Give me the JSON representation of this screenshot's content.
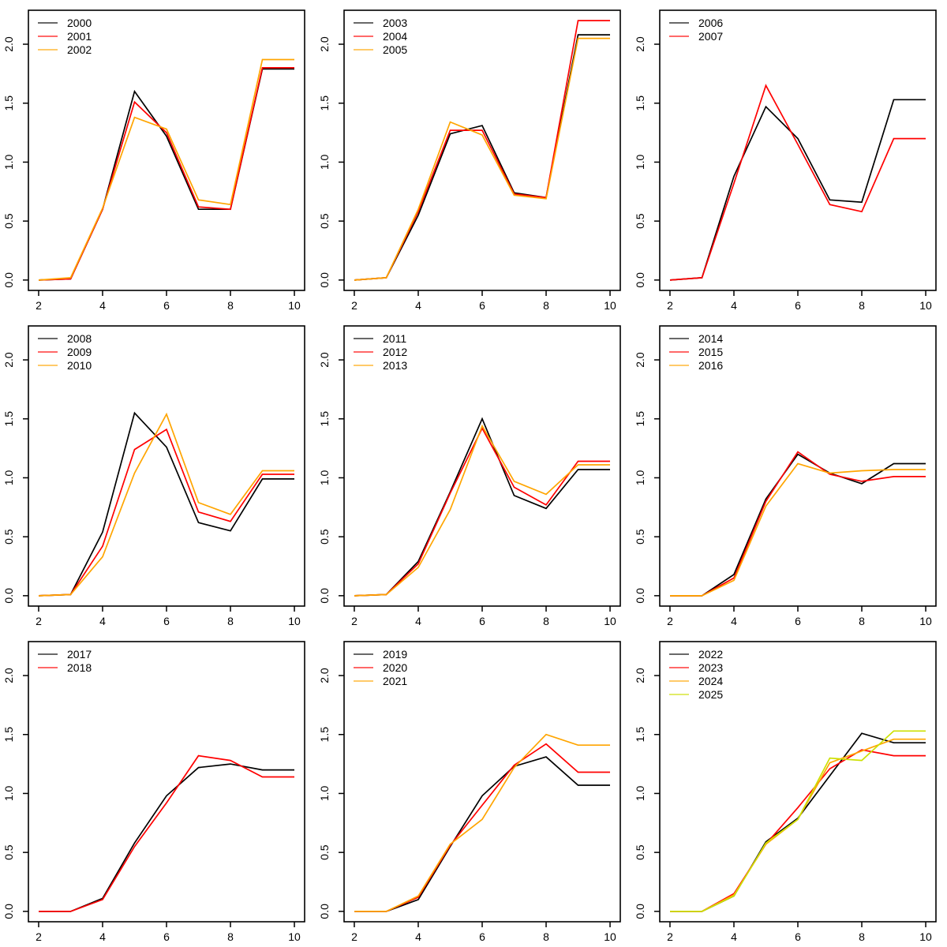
{
  "page": {
    "background": "#ffffff",
    "description": "3x3 grid of R-style base-graphics line charts, one panel per group of years 2000-2025"
  },
  "colors": {
    "series_palette": [
      "#000000",
      "#FF0000",
      "#FFA500",
      "#CCE000"
    ],
    "axis": "#000000",
    "text": "#000000"
  },
  "chart_data": [
    {
      "type": "line",
      "panel": 1,
      "x": [
        2,
        3,
        4,
        5,
        6,
        7,
        8,
        9,
        10
      ],
      "xlim": [
        2,
        10
      ],
      "ylim": [
        0,
        2.2
      ],
      "xticks": [
        2,
        4,
        6,
        8,
        10
      ],
      "yticks": [
        0.0,
        0.5,
        1.0,
        1.5,
        2.0
      ],
      "grid": false,
      "legend_position": "topleft",
      "series": [
        {
          "name": "2000",
          "color": "#000000",
          "values": [
            0.0,
            0.01,
            0.6,
            1.6,
            1.22,
            0.6,
            0.6,
            1.79,
            1.79
          ]
        },
        {
          "name": "2001",
          "color": "#FF0000",
          "values": [
            0.0,
            0.01,
            0.6,
            1.51,
            1.25,
            0.62,
            0.6,
            1.8,
            1.8
          ]
        },
        {
          "name": "2002",
          "color": "#FFA500",
          "values": [
            0.0,
            0.02,
            0.61,
            1.38,
            1.28,
            0.68,
            0.64,
            1.87,
            1.87
          ]
        }
      ]
    },
    {
      "type": "line",
      "panel": 2,
      "x": [
        2,
        3,
        4,
        5,
        6,
        7,
        8,
        9,
        10
      ],
      "xlim": [
        2,
        10
      ],
      "ylim": [
        0,
        2.2
      ],
      "xticks": [
        2,
        4,
        6,
        8,
        10
      ],
      "yticks": [
        0.0,
        0.5,
        1.0,
        1.5,
        2.0
      ],
      "grid": false,
      "legend_position": "topleft",
      "series": [
        {
          "name": "2003",
          "color": "#000000",
          "values": [
            0.0,
            0.02,
            0.55,
            1.24,
            1.31,
            0.74,
            0.7,
            2.08,
            2.08
          ]
        },
        {
          "name": "2004",
          "color": "#FF0000",
          "values": [
            0.0,
            0.02,
            0.58,
            1.27,
            1.27,
            0.73,
            0.7,
            2.2,
            2.2
          ]
        },
        {
          "name": "2005",
          "color": "#FFA500",
          "values": [
            0.0,
            0.02,
            0.6,
            1.34,
            1.23,
            0.72,
            0.69,
            2.05,
            2.05
          ]
        }
      ]
    },
    {
      "type": "line",
      "panel": 3,
      "x": [
        2,
        3,
        4,
        5,
        6,
        7,
        8,
        9,
        10
      ],
      "xlim": [
        2,
        10
      ],
      "ylim": [
        0,
        2.2
      ],
      "xticks": [
        2,
        4,
        6,
        8,
        10
      ],
      "yticks": [
        0.0,
        0.5,
        1.0,
        1.5,
        2.0
      ],
      "grid": false,
      "legend_position": "topleft",
      "series": [
        {
          "name": "2006",
          "color": "#000000",
          "values": [
            0.0,
            0.02,
            0.88,
            1.47,
            1.2,
            0.68,
            0.66,
            1.53,
            1.53
          ]
        },
        {
          "name": "2007",
          "color": "#FF0000",
          "values": [
            0.0,
            0.02,
            0.82,
            1.65,
            1.15,
            0.64,
            0.58,
            1.2,
            1.2
          ]
        }
      ]
    },
    {
      "type": "line",
      "panel": 4,
      "x": [
        2,
        3,
        4,
        5,
        6,
        7,
        8,
        9,
        10
      ],
      "xlim": [
        2,
        10
      ],
      "ylim": [
        0,
        2.2
      ],
      "xticks": [
        2,
        4,
        6,
        8,
        10
      ],
      "yticks": [
        0.0,
        0.5,
        1.0,
        1.5,
        2.0
      ],
      "grid": false,
      "legend_position": "topleft",
      "series": [
        {
          "name": "2008",
          "color": "#000000",
          "values": [
            0.0,
            0.01,
            0.54,
            1.55,
            1.26,
            0.62,
            0.55,
            0.99,
            0.99
          ]
        },
        {
          "name": "2009",
          "color": "#FF0000",
          "values": [
            0.0,
            0.01,
            0.42,
            1.24,
            1.41,
            0.71,
            0.63,
            1.03,
            1.03
          ]
        },
        {
          "name": "2010",
          "color": "#FFA500",
          "values": [
            0.0,
            0.01,
            0.33,
            1.04,
            1.54,
            0.79,
            0.69,
            1.06,
            1.06
          ]
        }
      ]
    },
    {
      "type": "line",
      "panel": 5,
      "x": [
        2,
        3,
        4,
        5,
        6,
        7,
        8,
        9,
        10
      ],
      "xlim": [
        2,
        10
      ],
      "ylim": [
        0,
        2.2
      ],
      "xticks": [
        2,
        4,
        6,
        8,
        10
      ],
      "yticks": [
        0.0,
        0.5,
        1.0,
        1.5,
        2.0
      ],
      "grid": false,
      "legend_position": "topleft",
      "series": [
        {
          "name": "2011",
          "color": "#000000",
          "values": [
            0.0,
            0.01,
            0.29,
            0.88,
            1.5,
            0.85,
            0.74,
            1.07,
            1.07
          ]
        },
        {
          "name": "2012",
          "color": "#FF0000",
          "values": [
            0.0,
            0.01,
            0.27,
            0.87,
            1.42,
            0.92,
            0.77,
            1.14,
            1.14
          ]
        },
        {
          "name": "2013",
          "color": "#FFA500",
          "values": [
            0.0,
            0.01,
            0.24,
            0.73,
            1.44,
            0.97,
            0.86,
            1.11,
            1.11
          ]
        }
      ]
    },
    {
      "type": "line",
      "panel": 6,
      "x": [
        2,
        3,
        4,
        5,
        6,
        7,
        8,
        9,
        10
      ],
      "xlim": [
        2,
        10
      ],
      "ylim": [
        0,
        2.2
      ],
      "xticks": [
        2,
        4,
        6,
        8,
        10
      ],
      "yticks": [
        0.0,
        0.5,
        1.0,
        1.5,
        2.0
      ],
      "grid": false,
      "legend_position": "topleft",
      "series": [
        {
          "name": "2014",
          "color": "#000000",
          "values": [
            0.0,
            0.0,
            0.18,
            0.82,
            1.2,
            1.04,
            0.95,
            1.12,
            1.12
          ]
        },
        {
          "name": "2015",
          "color": "#FF0000",
          "values": [
            0.0,
            0.0,
            0.15,
            0.8,
            1.22,
            1.03,
            0.97,
            1.01,
            1.01
          ]
        },
        {
          "name": "2016",
          "color": "#FFA500",
          "values": [
            0.0,
            0.0,
            0.13,
            0.76,
            1.12,
            1.04,
            1.06,
            1.07,
            1.07
          ]
        }
      ]
    },
    {
      "type": "line",
      "panel": 7,
      "x": [
        2,
        3,
        4,
        5,
        6,
        7,
        8,
        9,
        10
      ],
      "xlim": [
        2,
        10
      ],
      "ylim": [
        0,
        2.2
      ],
      "xticks": [
        2,
        4,
        6,
        8,
        10
      ],
      "yticks": [
        0.0,
        0.5,
        1.0,
        1.5,
        2.0
      ],
      "grid": false,
      "legend_position": "topleft",
      "series": [
        {
          "name": "2017",
          "color": "#000000",
          "values": [
            0.0,
            0.0,
            0.11,
            0.58,
            0.98,
            1.22,
            1.25,
            1.2,
            1.2
          ]
        },
        {
          "name": "2018",
          "color": "#FF0000",
          "values": [
            0.0,
            0.0,
            0.1,
            0.55,
            0.92,
            1.32,
            1.28,
            1.14,
            1.14
          ]
        }
      ]
    },
    {
      "type": "line",
      "panel": 8,
      "x": [
        2,
        3,
        4,
        5,
        6,
        7,
        8,
        9,
        10
      ],
      "xlim": [
        2,
        10
      ],
      "ylim": [
        0,
        2.2
      ],
      "xticks": [
        2,
        4,
        6,
        8,
        10
      ],
      "yticks": [
        0.0,
        0.5,
        1.0,
        1.5,
        2.0
      ],
      "grid": false,
      "legend_position": "topleft",
      "series": [
        {
          "name": "2019",
          "color": "#000000",
          "values": [
            0.0,
            0.0,
            0.1,
            0.55,
            0.98,
            1.23,
            1.31,
            1.07,
            1.07
          ]
        },
        {
          "name": "2020",
          "color": "#FF0000",
          "values": [
            0.0,
            0.0,
            0.12,
            0.56,
            0.9,
            1.24,
            1.42,
            1.18,
            1.18
          ]
        },
        {
          "name": "2021",
          "color": "#FFA500",
          "values": [
            0.0,
            0.0,
            0.13,
            0.57,
            0.78,
            1.22,
            1.5,
            1.41,
            1.41
          ]
        }
      ]
    },
    {
      "type": "line",
      "panel": 9,
      "x": [
        2,
        3,
        4,
        5,
        6,
        7,
        8,
        9,
        10
      ],
      "xlim": [
        2,
        10
      ],
      "ylim": [
        0,
        2.2
      ],
      "xticks": [
        2,
        4,
        6,
        8,
        10
      ],
      "yticks": [
        0.0,
        0.5,
        1.0,
        1.5,
        2.0
      ],
      "grid": false,
      "legend_position": "topleft",
      "series": [
        {
          "name": "2022",
          "color": "#000000",
          "values": [
            0.0,
            0.0,
            0.13,
            0.59,
            0.79,
            1.15,
            1.51,
            1.43,
            1.43
          ]
        },
        {
          "name": "2023",
          "color": "#FF0000",
          "values": [
            0.0,
            0.0,
            0.15,
            0.57,
            0.88,
            1.21,
            1.37,
            1.32,
            1.32
          ]
        },
        {
          "name": "2024",
          "color": "#FFA500",
          "values": [
            0.0,
            0.0,
            0.14,
            0.57,
            0.78,
            1.26,
            1.36,
            1.46,
            1.46
          ]
        },
        {
          "name": "2025",
          "color": "#CCE000",
          "values": [
            0.0,
            0.0,
            0.13,
            0.58,
            0.78,
            1.3,
            1.28,
            1.53,
            1.53
          ]
        }
      ]
    }
  ]
}
